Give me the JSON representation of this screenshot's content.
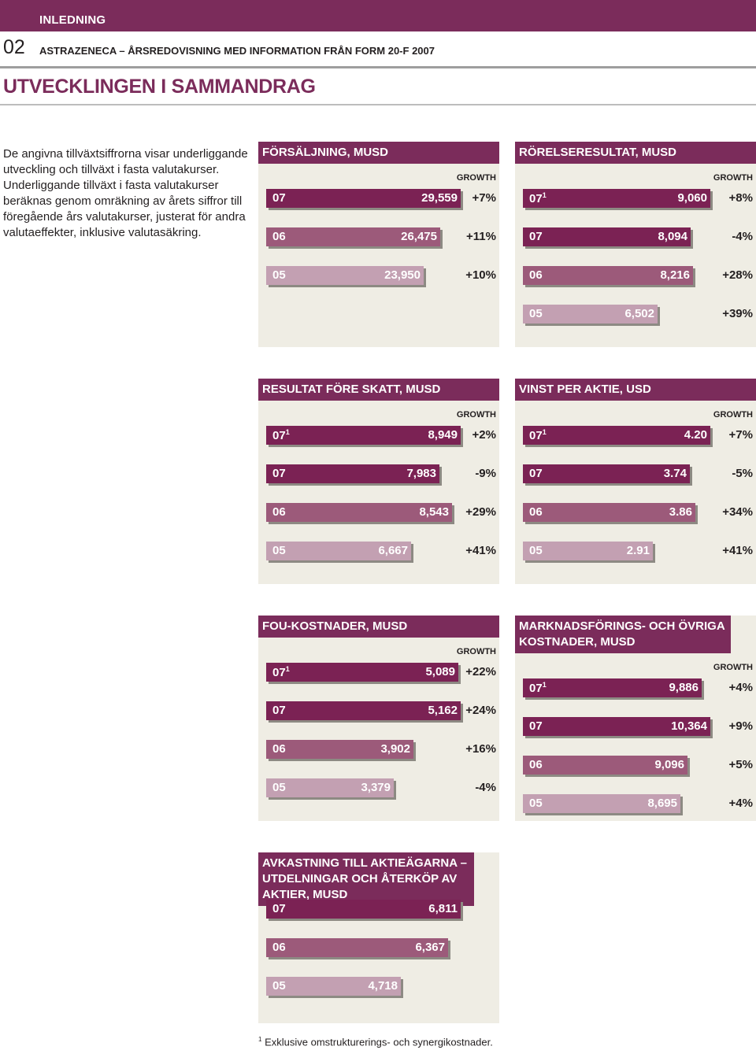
{
  "header": {
    "section": "INLEDNING",
    "page_number": "02",
    "document_title": "ASTRAZENECA – ÅRSREDOVISNING MED INFORMATION FRÅN FORM 20-F 2007",
    "main_title": "UTVECKLINGEN I SAMMANDRAG"
  },
  "intro_text": "De angivna tillväxtsiffrorna visar underliggande utveckling och tillväxt i fasta valutakurser. Underliggande tillväxt i fasta valutakurser beräknas genom omräkning av årets siffror till föregående års valutakurser, justerat för andra valutaeffekter, inklusive valutasäkring.",
  "colors": {
    "accent": "#7b2c5b",
    "bar_dark": "#7b2254",
    "bar_mid": "#9c5a7a",
    "bar_light": "#c3a0b2",
    "panel_bg": "#efede4"
  },
  "footnote": {
    "mark": "1",
    "text": "Exklusive omstrukturerings- och synergikostnader."
  },
  "chart_data": [
    {
      "type": "bar",
      "title": "FÖRSÄLJNING, MUSD",
      "growth_header": "GROWTH",
      "rows": [
        {
          "year": "07",
          "sup": "",
          "value": 29559,
          "label": "29,559",
          "growth": "+7%"
        },
        {
          "year": "06",
          "sup": "",
          "value": 26475,
          "label": "26,475",
          "growth": "+11%"
        },
        {
          "year": "05",
          "sup": "",
          "value": 23950,
          "label": "23,950",
          "growth": "+10%"
        }
      ]
    },
    {
      "type": "bar",
      "title": "RÖRELSERESULTAT, MUSD",
      "growth_header": "GROWTH",
      "rows": [
        {
          "year": "07",
          "sup": "1",
          "value": 9060,
          "label": "9,060",
          "growth": "+8%"
        },
        {
          "year": "07",
          "sup": "",
          "value": 8094,
          "label": "8,094",
          "growth": "-4%"
        },
        {
          "year": "06",
          "sup": "",
          "value": 8216,
          "label": "8,216",
          "growth": "+28%"
        },
        {
          "year": "05",
          "sup": "",
          "value": 6502,
          "label": "6,502",
          "growth": "+39%"
        }
      ]
    },
    {
      "type": "bar",
      "title": "RESULTAT FÖRE SKATT, MUSD",
      "growth_header": "GROWTH",
      "rows": [
        {
          "year": "07",
          "sup": "1",
          "value": 8949,
          "label": "8,949",
          "growth": "+2%"
        },
        {
          "year": "07",
          "sup": "",
          "value": 7983,
          "label": "7,983",
          "growth": "-9%"
        },
        {
          "year": "06",
          "sup": "",
          "value": 8543,
          "label": "8,543",
          "growth": "+29%"
        },
        {
          "year": "05",
          "sup": "",
          "value": 6667,
          "label": "6,667",
          "growth": "+41%"
        }
      ]
    },
    {
      "type": "bar",
      "title": "VINST PER AKTIE, USD",
      "growth_header": "GROWTH",
      "rows": [
        {
          "year": "07",
          "sup": "1",
          "value": 4.2,
          "label": "4.20",
          "growth": "+7%"
        },
        {
          "year": "07",
          "sup": "",
          "value": 3.74,
          "label": "3.74",
          "growth": "-5%"
        },
        {
          "year": "06",
          "sup": "",
          "value": 3.86,
          "label": "3.86",
          "growth": "+34%"
        },
        {
          "year": "05",
          "sup": "",
          "value": 2.91,
          "label": "2.91",
          "growth": "+41%"
        }
      ]
    },
    {
      "type": "bar",
      "title": "FOU-KOSTNADER, MUSD",
      "growth_header": "GROWTH",
      "rows": [
        {
          "year": "07",
          "sup": "1",
          "value": 5089,
          "label": "5,089",
          "growth": "+22%"
        },
        {
          "year": "07",
          "sup": "",
          "value": 5162,
          "label": "5,162",
          "growth": "+24%"
        },
        {
          "year": "06",
          "sup": "",
          "value": 3902,
          "label": "3,902",
          "growth": "+16%"
        },
        {
          "year": "05",
          "sup": "",
          "value": 3379,
          "label": "3,379",
          "growth": "-4%"
        }
      ]
    },
    {
      "type": "bar",
      "title": "MARKNADSFÖRINGS- OCH ÖVRIGA KOSTNADER, MUSD",
      "growth_header": "GROWTH",
      "rows": [
        {
          "year": "07",
          "sup": "1",
          "value": 9886,
          "label": "9,886",
          "growth": "+4%"
        },
        {
          "year": "07",
          "sup": "",
          "value": 10364,
          "label": "10,364",
          "growth": "+9%"
        },
        {
          "year": "06",
          "sup": "",
          "value": 9096,
          "label": "9,096",
          "growth": "+5%"
        },
        {
          "year": "05",
          "sup": "",
          "value": 8695,
          "label": "8,695",
          "growth": "+4%"
        }
      ]
    },
    {
      "type": "bar",
      "title": "AVKASTNING TILL AKTIEÄGARNA – UTDELNINGAR OCH ÅTERKÖP AV AKTIER, MUSD",
      "growth_header": "",
      "rows": [
        {
          "year": "07",
          "sup": "",
          "value": 6811,
          "label": "6,811",
          "growth": ""
        },
        {
          "year": "06",
          "sup": "",
          "value": 6367,
          "label": "6,367",
          "growth": ""
        },
        {
          "year": "05",
          "sup": "",
          "value": 4718,
          "label": "4,718",
          "growth": ""
        }
      ]
    }
  ]
}
